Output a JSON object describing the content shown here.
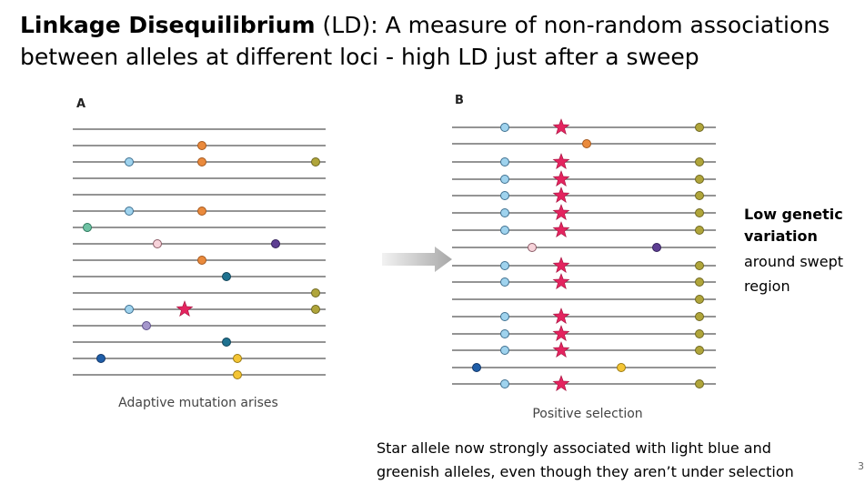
{
  "title": {
    "bold": "Linkage Disequilibrium",
    "rest": "(LD): A  measure of non-random associations",
    "line2": "between alleles at different loci - high LD just after a sweep"
  },
  "panels": [
    {
      "label": "A",
      "caption": "Adaptive mutation arises"
    },
    {
      "label": "B",
      "caption": "Positive selection"
    }
  ],
  "side_note": {
    "bold_lines": [
      "Low genetic",
      "variation"
    ],
    "lines": [
      "around swept",
      "region"
    ]
  },
  "footer": {
    "lines": [
      "Star allele now strongly associated with light blue and",
      "greenish alleles, even though they aren’t under selection"
    ]
  },
  "page_number": "3"
}
